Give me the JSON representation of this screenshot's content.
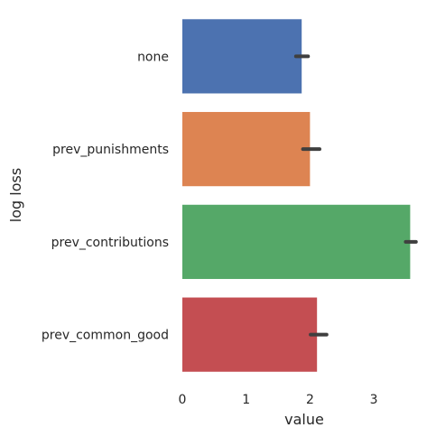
{
  "chart_data": {
    "type": "bar",
    "orientation": "horizontal",
    "categories": [
      "none",
      "prev_punishments",
      "prev_contributions",
      "prev_common_good"
    ],
    "values": [
      1.87,
      2.0,
      3.57,
      2.11
    ],
    "error_bars": [
      [
        1.78,
        1.97
      ],
      [
        1.89,
        2.15
      ],
      [
        3.5,
        3.66
      ],
      [
        2.01,
        2.26
      ]
    ],
    "colors": [
      "#4c72b0",
      "#dd8452",
      "#55a868",
      "#c44e52"
    ],
    "error_color": "#3f3f3f",
    "xlabel": "value",
    "ylabel": "log loss",
    "xlim": [
      0,
      3.75
    ],
    "xticks": [
      "0",
      "1",
      "2",
      "3"
    ],
    "grid": false,
    "legend": "none"
  }
}
